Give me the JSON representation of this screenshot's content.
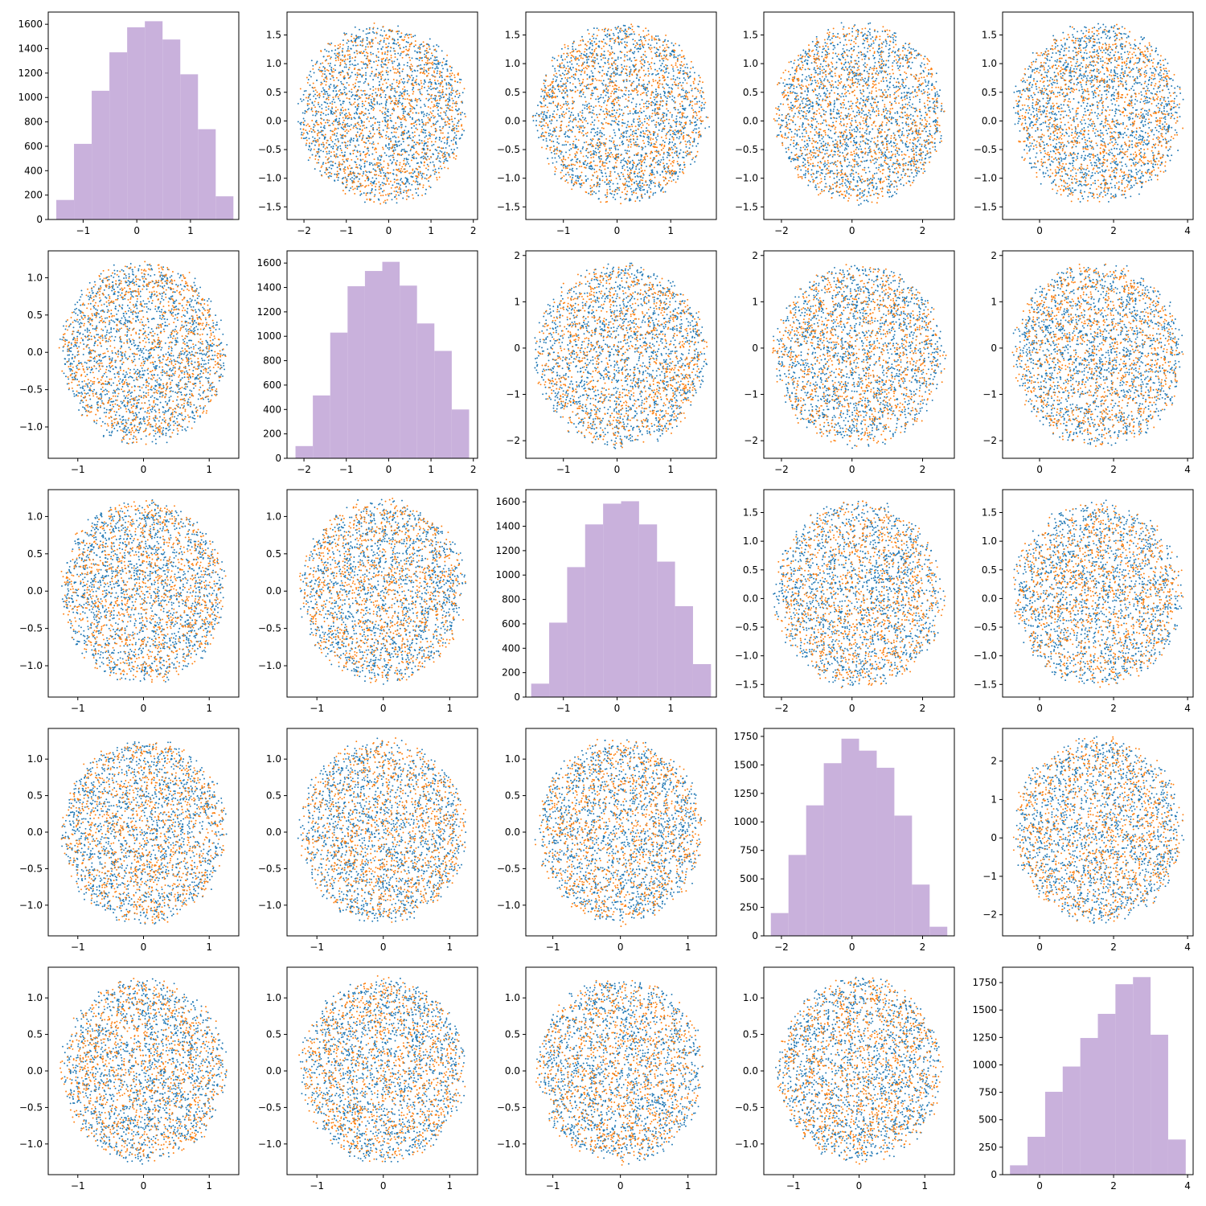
{
  "figure": {
    "layout": "5x5 pair-plot grid"
  },
  "colors": {
    "series_a": "#1f77b4",
    "series_b": "#ff7f0e",
    "hist": "#c9b1dc"
  },
  "chart_data": [
    {
      "id": "r0c0",
      "row": 0,
      "col": 0,
      "type": "bar",
      "xlim": [
        -1.65,
        1.9
      ],
      "ylim": [
        0,
        1700
      ],
      "xticks": [
        -1,
        0,
        1
      ],
      "yticks": [
        0,
        200,
        400,
        600,
        800,
        1000,
        1200,
        1400,
        1600
      ],
      "bins": [
        [
          -1.5,
          -1.17,
          160
        ],
        [
          -1.17,
          -0.84,
          620
        ],
        [
          -0.84,
          -0.51,
          1055
        ],
        [
          -0.51,
          -0.18,
          1370
        ],
        [
          -0.18,
          0.15,
          1575
        ],
        [
          0.15,
          0.48,
          1625
        ],
        [
          0.48,
          0.81,
          1475
        ],
        [
          0.81,
          1.14,
          1190
        ],
        [
          1.14,
          1.47,
          740
        ],
        [
          1.47,
          1.8,
          190
        ]
      ]
    },
    {
      "id": "r0c1",
      "row": 0,
      "col": 1,
      "type": "scatter",
      "xlim": [
        -2.4,
        2.1
      ],
      "ylim": [
        -1.72,
        1.9
      ],
      "xticks": [
        -2,
        -1,
        0,
        1,
        2
      ],
      "yticks": [
        -1.5,
        -1.0,
        -0.5,
        0.0,
        0.5,
        1.0,
        1.5
      ],
      "x_range": [
        -2.2,
        1.9
      ],
      "y_range": [
        -1.5,
        1.75
      ]
    },
    {
      "id": "r0c2",
      "row": 0,
      "col": 2,
      "type": "scatter",
      "xlim": [
        -1.7,
        1.85
      ],
      "ylim": [
        -1.72,
        1.9
      ],
      "xticks": [
        -1,
        0,
        1
      ],
      "yticks": [
        -1.5,
        -1.0,
        -0.5,
        0.0,
        0.5,
        1.0,
        1.5
      ],
      "x_range": [
        -1.6,
        1.75
      ],
      "y_range": [
        -1.5,
        1.75
      ]
    },
    {
      "id": "r0c3",
      "row": 0,
      "col": 3,
      "type": "scatter",
      "xlim": [
        -2.5,
        2.9
      ],
      "ylim": [
        -1.72,
        1.9
      ],
      "xticks": [
        -2,
        0,
        2
      ],
      "yticks": [
        -1.5,
        -1.0,
        -0.5,
        0.0,
        0.5,
        1.0,
        1.5
      ],
      "x_range": [
        -2.3,
        2.7
      ],
      "y_range": [
        -1.5,
        1.75
      ]
    },
    {
      "id": "r0c4",
      "row": 0,
      "col": 4,
      "type": "scatter",
      "xlim": [
        -1.0,
        4.15
      ],
      "ylim": [
        -1.72,
        1.9
      ],
      "xticks": [
        0,
        2,
        4
      ],
      "yticks": [
        -1.5,
        -1.0,
        -0.5,
        0.0,
        0.5,
        1.0,
        1.5
      ],
      "x_range": [
        -0.8,
        3.95
      ],
      "y_range": [
        -1.5,
        1.75
      ]
    },
    {
      "id": "r1c0",
      "row": 1,
      "col": 0,
      "type": "scatter",
      "xlim": [
        -1.45,
        1.45
      ],
      "ylim": [
        -1.42,
        1.36
      ],
      "xticks": [
        -1,
        0,
        1
      ],
      "yticks": [
        -1.0,
        -0.5,
        0.0,
        0.5,
        1.0
      ],
      "x_range": [
        -1.3,
        1.3
      ],
      "y_range": [
        -1.28,
        1.28
      ]
    },
    {
      "id": "r1c1",
      "row": 1,
      "col": 1,
      "type": "bar",
      "xlim": [
        -2.4,
        2.1
      ],
      "ylim": [
        0,
        1700
      ],
      "xticks": [
        -2,
        -1,
        0,
        1,
        2
      ],
      "yticks": [
        0,
        200,
        400,
        600,
        800,
        1000,
        1200,
        1400,
        1600
      ],
      "bins": [
        [
          -2.2,
          -1.79,
          100
        ],
        [
          -1.79,
          -1.38,
          515
        ],
        [
          -1.38,
          -0.97,
          1030
        ],
        [
          -0.97,
          -0.56,
          1410
        ],
        [
          -0.56,
          -0.15,
          1535
        ],
        [
          -0.15,
          0.26,
          1610
        ],
        [
          0.26,
          0.67,
          1415
        ],
        [
          0.67,
          1.08,
          1105
        ],
        [
          1.08,
          1.49,
          880
        ],
        [
          1.49,
          1.9,
          400
        ]
      ]
    },
    {
      "id": "r1c2",
      "row": 1,
      "col": 2,
      "type": "scatter",
      "xlim": [
        -1.7,
        1.85
      ],
      "ylim": [
        -2.38,
        2.1
      ],
      "xticks": [
        -1,
        0,
        1
      ],
      "yticks": [
        -2,
        -1,
        0,
        1,
        2
      ],
      "x_range": [
        -1.6,
        1.75
      ],
      "y_range": [
        -2.2,
        1.9
      ]
    },
    {
      "id": "r1c3",
      "row": 1,
      "col": 3,
      "type": "scatter",
      "xlim": [
        -2.5,
        2.9
      ],
      "ylim": [
        -2.38,
        2.1
      ],
      "xticks": [
        -2,
        0,
        2
      ],
      "yticks": [
        -2,
        -1,
        0,
        1,
        2
      ],
      "x_range": [
        -2.3,
        2.7
      ],
      "y_range": [
        -2.2,
        1.9
      ]
    },
    {
      "id": "r1c4",
      "row": 1,
      "col": 4,
      "type": "scatter",
      "xlim": [
        -1.0,
        4.15
      ],
      "ylim": [
        -2.38,
        2.1
      ],
      "xticks": [
        0,
        2,
        4
      ],
      "yticks": [
        -2,
        -1,
        0,
        1,
        2
      ],
      "x_range": [
        -0.8,
        3.95
      ],
      "y_range": [
        -2.2,
        1.9
      ]
    },
    {
      "id": "r2c0",
      "row": 2,
      "col": 0,
      "type": "scatter",
      "xlim": [
        -1.45,
        1.45
      ],
      "ylim": [
        -1.42,
        1.36
      ],
      "xticks": [
        -1,
        0,
        1
      ],
      "yticks": [
        -1.0,
        -0.5,
        0.0,
        0.5,
        1.0
      ],
      "x_range": [
        -1.3,
        1.3
      ],
      "y_range": [
        -1.28,
        1.28
      ]
    },
    {
      "id": "r2c1",
      "row": 2,
      "col": 1,
      "type": "scatter",
      "xlim": [
        -1.45,
        1.42
      ],
      "ylim": [
        -1.42,
        1.36
      ],
      "xticks": [
        -1,
        0,
        1
      ],
      "yticks": [
        -1.0,
        -0.5,
        0.0,
        0.5,
        1.0
      ],
      "x_range": [
        -1.3,
        1.28
      ],
      "y_range": [
        -1.28,
        1.28
      ]
    },
    {
      "id": "r2c2",
      "row": 2,
      "col": 2,
      "type": "bar",
      "xlim": [
        -1.7,
        1.85
      ],
      "ylim": [
        0,
        1700
      ],
      "xticks": [
        -1,
        0,
        1
      ],
      "yticks": [
        0,
        200,
        400,
        600,
        800,
        1000,
        1200,
        1400,
        1600
      ],
      "bins": [
        [
          -1.6,
          -1.265,
          110
        ],
        [
          -1.265,
          -0.93,
          610
        ],
        [
          -0.93,
          -0.595,
          1065
        ],
        [
          -0.595,
          -0.26,
          1415
        ],
        [
          -0.26,
          0.075,
          1585
        ],
        [
          0.075,
          0.41,
          1605
        ],
        [
          0.41,
          0.745,
          1415
        ],
        [
          0.745,
          1.08,
          1110
        ],
        [
          1.08,
          1.415,
          745
        ],
        [
          1.415,
          1.75,
          270
        ]
      ]
    },
    {
      "id": "r2c3",
      "row": 2,
      "col": 3,
      "type": "scatter",
      "xlim": [
        -2.5,
        2.9
      ],
      "ylim": [
        -1.72,
        1.9
      ],
      "xticks": [
        -2,
        0,
        2
      ],
      "yticks": [
        -1.5,
        -1.0,
        -0.5,
        0.0,
        0.5,
        1.0,
        1.5
      ],
      "x_range": [
        -2.3,
        2.7
      ],
      "y_range": [
        -1.6,
        1.75
      ]
    },
    {
      "id": "r2c4",
      "row": 2,
      "col": 4,
      "type": "scatter",
      "xlim": [
        -1.0,
        4.15
      ],
      "ylim": [
        -1.72,
        1.9
      ],
      "xticks": [
        0,
        2,
        4
      ],
      "yticks": [
        -1.5,
        -1.0,
        -0.5,
        0.0,
        0.5,
        1.0,
        1.5
      ],
      "x_range": [
        -0.8,
        3.95
      ],
      "y_range": [
        -1.6,
        1.75
      ]
    },
    {
      "id": "r3c0",
      "row": 3,
      "col": 0,
      "type": "scatter",
      "xlim": [
        -1.45,
        1.45
      ],
      "ylim": [
        -1.42,
        1.42
      ],
      "xticks": [
        -1,
        0,
        1
      ],
      "yticks": [
        -1.0,
        -0.5,
        0.0,
        0.5,
        1.0
      ],
      "x_range": [
        -1.3,
        1.3
      ],
      "y_range": [
        -1.3,
        1.32
      ]
    },
    {
      "id": "r3c1",
      "row": 3,
      "col": 1,
      "type": "scatter",
      "xlim": [
        -1.45,
        1.42
      ],
      "ylim": [
        -1.42,
        1.42
      ],
      "xticks": [
        -1,
        0,
        1
      ],
      "yticks": [
        -1.0,
        -0.5,
        0.0,
        0.5,
        1.0
      ],
      "x_range": [
        -1.3,
        1.28
      ],
      "y_range": [
        -1.3,
        1.32
      ]
    },
    {
      "id": "r3c2",
      "row": 3,
      "col": 2,
      "type": "scatter",
      "xlim": [
        -1.4,
        1.42
      ],
      "ylim": [
        -1.42,
        1.42
      ],
      "xticks": [
        -1,
        0,
        1
      ],
      "yticks": [
        -1.0,
        -0.5,
        0.0,
        0.5,
        1.0
      ],
      "x_range": [
        -1.28,
        1.28
      ],
      "y_range": [
        -1.3,
        1.32
      ]
    },
    {
      "id": "r3c3",
      "row": 3,
      "col": 3,
      "type": "bar",
      "xlim": [
        -2.5,
        2.9
      ],
      "ylim": [
        0,
        1820
      ],
      "xticks": [
        -2,
        0,
        2
      ],
      "yticks": [
        0,
        250,
        500,
        750,
        1000,
        1250,
        1500,
        1750
      ],
      "bins": [
        [
          -2.3,
          -1.8,
          200
        ],
        [
          -1.8,
          -1.3,
          710
        ],
        [
          -1.3,
          -0.8,
          1145
        ],
        [
          -0.8,
          -0.3,
          1515
        ],
        [
          -0.3,
          0.2,
          1730
        ],
        [
          0.2,
          0.7,
          1625
        ],
        [
          0.7,
          1.2,
          1475
        ],
        [
          1.2,
          1.7,
          1055
        ],
        [
          1.7,
          2.2,
          450
        ],
        [
          2.2,
          2.7,
          80
        ]
      ]
    },
    {
      "id": "r3c4",
      "row": 3,
      "col": 4,
      "type": "scatter",
      "xlim": [
        -1.0,
        4.15
      ],
      "ylim": [
        -2.55,
        2.85
      ],
      "xticks": [
        0,
        2,
        4
      ],
      "yticks": [
        -2,
        -1,
        0,
        1,
        2
      ],
      "x_range": [
        -0.8,
        3.95
      ],
      "y_range": [
        -2.3,
        2.7
      ]
    },
    {
      "id": "r4c0",
      "row": 4,
      "col": 0,
      "type": "scatter",
      "xlim": [
        -1.45,
        1.45
      ],
      "ylim": [
        -1.42,
        1.42
      ],
      "xticks": [
        -1,
        0,
        1
      ],
      "yticks": [
        -1.0,
        -0.5,
        0.0,
        0.5,
        1.0
      ],
      "x_range": [
        -1.3,
        1.3
      ],
      "y_range": [
        -1.3,
        1.32
      ]
    },
    {
      "id": "r4c1",
      "row": 4,
      "col": 1,
      "type": "scatter",
      "xlim": [
        -1.45,
        1.42
      ],
      "ylim": [
        -1.42,
        1.42
      ],
      "xticks": [
        -1,
        0,
        1
      ],
      "yticks": [
        -1.0,
        -0.5,
        0.0,
        0.5,
        1.0
      ],
      "x_range": [
        -1.3,
        1.28
      ],
      "y_range": [
        -1.3,
        1.32
      ]
    },
    {
      "id": "r4c2",
      "row": 4,
      "col": 2,
      "type": "scatter",
      "xlim": [
        -1.4,
        1.42
      ],
      "ylim": [
        -1.42,
        1.42
      ],
      "xticks": [
        -1,
        0,
        1
      ],
      "yticks": [
        -1.0,
        -0.5,
        0.0,
        0.5,
        1.0
      ],
      "x_range": [
        -1.28,
        1.28
      ],
      "y_range": [
        -1.3,
        1.32
      ]
    },
    {
      "id": "r4c3",
      "row": 4,
      "col": 3,
      "type": "scatter",
      "xlim": [
        -1.45,
        1.45
      ],
      "ylim": [
        -1.42,
        1.42
      ],
      "xticks": [
        -1,
        0,
        1
      ],
      "yticks": [
        -1.0,
        -0.5,
        0.0,
        0.5,
        1.0
      ],
      "x_range": [
        -1.3,
        1.3
      ],
      "y_range": [
        -1.3,
        1.32
      ]
    },
    {
      "id": "r4c4",
      "row": 4,
      "col": 4,
      "type": "bar",
      "xlim": [
        -1.0,
        4.15
      ],
      "ylim": [
        0,
        1890
      ],
      "xticks": [
        0,
        2,
        4
      ],
      "yticks": [
        0,
        250,
        500,
        750,
        1000,
        1250,
        1500,
        1750
      ],
      "bins": [
        [
          -0.8,
          -0.325,
          85
        ],
        [
          -0.325,
          0.15,
          345
        ],
        [
          0.15,
          0.625,
          755
        ],
        [
          0.625,
          1.1,
          985
        ],
        [
          1.1,
          1.575,
          1245
        ],
        [
          1.575,
          2.05,
          1465
        ],
        [
          2.05,
          2.525,
          1735
        ],
        [
          2.525,
          3.0,
          1800
        ],
        [
          3.0,
          3.475,
          1275
        ],
        [
          3.475,
          3.95,
          320
        ]
      ]
    }
  ]
}
